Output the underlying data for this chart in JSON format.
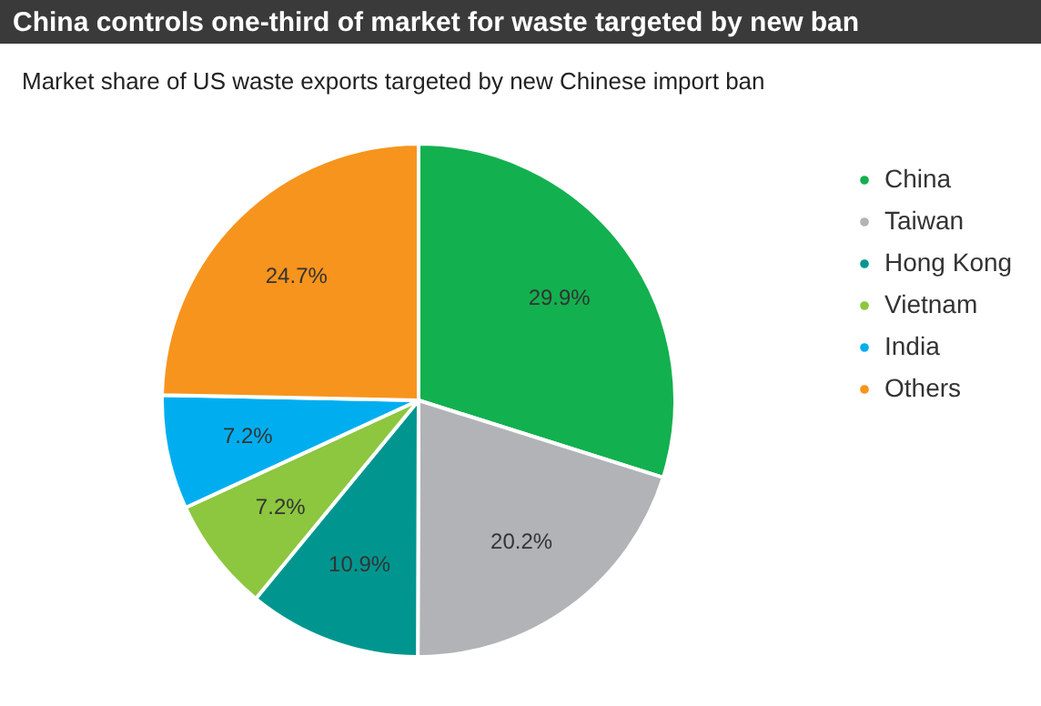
{
  "chart_data": {
    "type": "pie",
    "title": "China controls one-third of market for waste targeted by new ban",
    "subtitle": "Market share of US waste exports targeted by new Chinese import ban",
    "categories": [
      "China",
      "Taiwan",
      "Hong Kong",
      "Vietnam",
      "India",
      "Others"
    ],
    "values": [
      29.9,
      20.2,
      10.9,
      7.2,
      7.2,
      24.7
    ],
    "value_labels": [
      "29.9%",
      "20.2%",
      "10.9%",
      "7.2%",
      "7.2%",
      "24.7%"
    ],
    "colors": [
      "#13b04f",
      "#b1b3b6",
      "#00968f",
      "#8dc63f",
      "#00aeef",
      "#f7941d"
    ],
    "legend": "right"
  }
}
